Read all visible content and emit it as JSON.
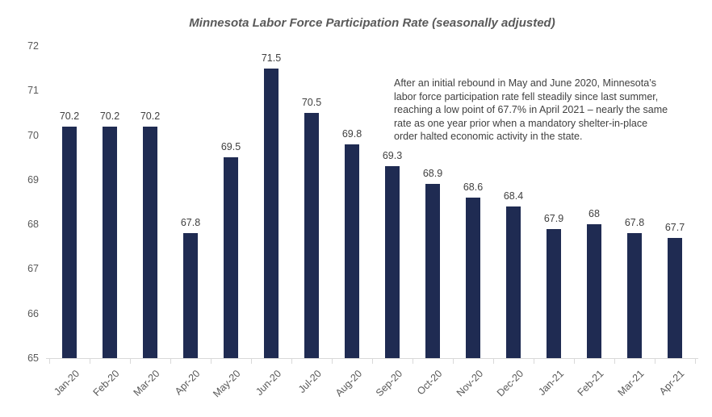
{
  "chart_data": {
    "type": "bar",
    "title": "Minnesota Labor Force Participation Rate (seasonally adjusted)",
    "categories": [
      "Jan-20",
      "Feb-20",
      "Mar-20",
      "Apr-20",
      "May-20",
      "Jun-20",
      "Jul-20",
      "Aug-20",
      "Sep-20",
      "Oct-20",
      "Nov-20",
      "Dec-20",
      "Jan-21",
      "Feb-21",
      "Mar-21",
      "Apr-21"
    ],
    "values": [
      70.2,
      70.2,
      70.2,
      67.8,
      69.5,
      71.5,
      70.5,
      69.8,
      69.3,
      68.9,
      68.6,
      68.4,
      67.9,
      68,
      67.8,
      67.7
    ],
    "data_labels": [
      "70.2",
      "70.2",
      "70.2",
      "67.8",
      "69.5",
      "71.5",
      "70.5",
      "69.8",
      "69.3",
      "68.9",
      "68.6",
      "68.4",
      "67.9",
      "68",
      "67.8",
      "67.7"
    ],
    "xlabel": "",
    "ylabel": "",
    "ylim": [
      65,
      72
    ],
    "yticks": [
      65,
      66,
      67,
      68,
      69,
      70,
      71,
      72
    ],
    "grid": false,
    "legend": false,
    "bar_color": "#1f2b52",
    "axis_color": "#d9d9d9",
    "label_color": "#404040",
    "tick_label_color": "#595959",
    "annotation": "After an initial rebound in May and June 2020, Minnesota’s\nlabor force participation rate fell steadily since last summer,\nreaching a low point of 67.7% in April 2021 – nearly the same\nrate as one year prior when a mandatory shelter-in-place\norder halted economic activity in the state."
  }
}
